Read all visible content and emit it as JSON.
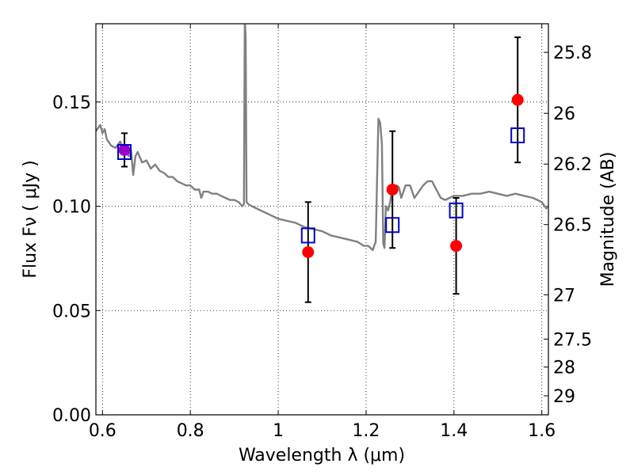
{
  "chart_data": {
    "type": "scatter",
    "xlabel": "Wavelength  λ (μm)",
    "ylabel": "Flux  Fν  ( μJy )",
    "y2label": "Magnitude (AB)",
    "xlim": [
      0.585,
      1.615
    ],
    "ylim": [
      0.0,
      0.1875
    ],
    "grid": true,
    "x_ticks": [
      0.6,
      0.8,
      1.0,
      1.2,
      1.4,
      1.6
    ],
    "x_tick_labels": [
      "0.6",
      "0.8",
      "1",
      "1.2",
      "1.4",
      "1.6"
    ],
    "y_ticks": [
      0.0,
      0.05,
      0.1,
      0.15
    ],
    "y_tick_labels": [
      "0.00",
      "0.05",
      "0.10",
      "0.15"
    ],
    "y2_ticks": [
      {
        "label": "25.8",
        "mag": 25.8
      },
      {
        "label": "26",
        "mag": 26.0
      },
      {
        "label": "26.2",
        "mag": 26.2
      },
      {
        "label": "26.5",
        "mag": 26.5
      },
      {
        "label": "27",
        "mag": 27.0
      },
      {
        "label": "27.5",
        "mag": 27.5
      },
      {
        "label": "28",
        "mag": 28.0
      },
      {
        "label": "29",
        "mag": 29.0
      }
    ],
    "colors": {
      "spectrum": "#808080",
      "observed": "#ff0000",
      "model": "#0000cc",
      "errorbar": "#000000",
      "overlap": "#9b00c8"
    },
    "series": [
      {
        "kind": "line",
        "x": [
          0.585,
          0.595,
          0.6,
          0.605,
          0.61,
          0.62,
          0.63,
          0.64,
          0.65,
          0.66,
          0.665,
          0.67,
          0.675,
          0.68,
          0.69,
          0.7,
          0.71,
          0.72,
          0.73,
          0.74,
          0.75,
          0.76,
          0.77,
          0.78,
          0.79,
          0.8,
          0.81,
          0.82,
          0.825,
          0.83,
          0.84,
          0.85,
          0.86,
          0.87,
          0.88,
          0.89,
          0.9,
          0.91,
          0.918,
          0.922,
          0.924,
          0.926,
          0.928,
          0.932,
          0.94,
          0.96,
          0.98,
          1.0,
          1.02,
          1.04,
          1.06,
          1.08,
          1.1,
          1.12,
          1.14,
          1.16,
          1.18,
          1.195,
          1.205,
          1.215,
          1.222,
          1.228,
          1.232,
          1.236,
          1.239,
          1.242,
          1.245,
          1.25,
          1.255,
          1.26,
          1.265,
          1.27,
          1.275,
          1.28,
          1.29,
          1.3,
          1.31,
          1.32,
          1.33,
          1.34,
          1.35,
          1.36,
          1.37,
          1.38,
          1.39,
          1.4,
          1.42,
          1.44,
          1.46,
          1.48,
          1.5,
          1.52,
          1.54,
          1.56,
          1.58,
          1.6,
          1.61,
          1.615
        ],
        "y": [
          0.136,
          0.139,
          0.135,
          0.137,
          0.132,
          0.129,
          0.128,
          0.131,
          0.127,
          0.124,
          0.127,
          0.115,
          0.124,
          0.126,
          0.121,
          0.122,
          0.118,
          0.12,
          0.117,
          0.116,
          0.114,
          0.114,
          0.112,
          0.111,
          0.11,
          0.11,
          0.108,
          0.108,
          0.104,
          0.107,
          0.107,
          0.106,
          0.106,
          0.105,
          0.104,
          0.103,
          0.103,
          0.102,
          0.1,
          0.101,
          0.19,
          0.181,
          0.102,
          0.101,
          0.1,
          0.098,
          0.096,
          0.094,
          0.093,
          0.092,
          0.09,
          0.089,
          0.088,
          0.086,
          0.085,
          0.084,
          0.083,
          0.081,
          0.081,
          0.079,
          0.083,
          0.142,
          0.14,
          0.13,
          0.082,
          0.08,
          0.1,
          0.098,
          0.102,
          0.11,
          0.107,
          0.11,
          0.109,
          0.104,
          0.11,
          0.11,
          0.104,
          0.107,
          0.11,
          0.112,
          0.112,
          0.108,
          0.104,
          0.103,
          0.104,
          0.105,
          0.105,
          0.106,
          0.106,
          0.107,
          0.106,
          0.105,
          0.106,
          0.105,
          0.104,
          0.102,
          0.099,
          0.1
        ]
      },
      {
        "kind": "observed",
        "x": [
          0.65,
          1.068,
          1.26,
          1.405,
          1.545
        ],
        "y": [
          0.127,
          0.078,
          0.108,
          0.081,
          0.151
        ],
        "err": [
          0.008,
          0.024,
          0.028,
          0.023,
          0.03
        ]
      },
      {
        "kind": "model",
        "x": [
          0.65,
          1.068,
          1.26,
          1.405,
          1.545
        ],
        "y": [
          0.126,
          0.086,
          0.091,
          0.098,
          0.134
        ]
      }
    ]
  }
}
